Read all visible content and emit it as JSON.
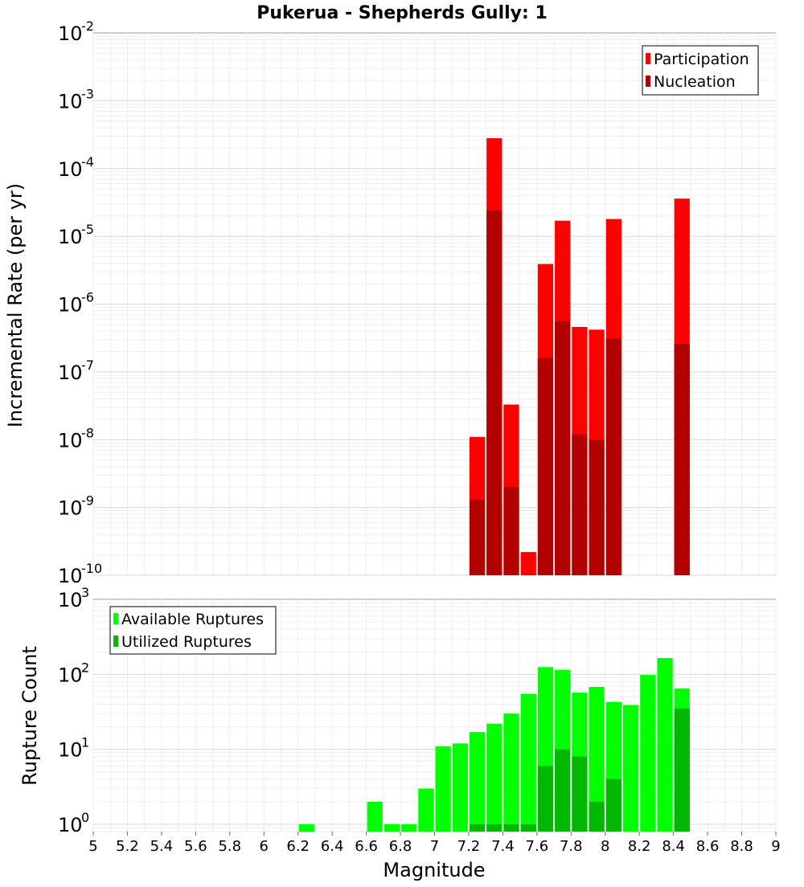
{
  "chart_data": [
    {
      "type": "bar",
      "title": "Pukerua - Shepherds Gully: 1",
      "xlabel": "",
      "ylabel": "Incremental Rate (per yr)",
      "yscale": "log",
      "ylim": [
        1e-10,
        0.01
      ],
      "xlim": [
        5,
        9
      ],
      "ytick_base": "10",
      "ytick_exponents": [
        "-10",
        "-9",
        "-8",
        "-7",
        "-6",
        "-5",
        "-4",
        "-3",
        "-2"
      ],
      "legend_position": "top-right",
      "series": [
        {
          "name": "Participation",
          "color": "#ff0000",
          "x": [
            7.25,
            7.35,
            7.45,
            7.55,
            7.65,
            7.75,
            7.85,
            7.95,
            8.05,
            8.45
          ],
          "values": [
            1.1e-08,
            0.00028,
            3.3e-08,
            2.2e-10,
            3.9e-06,
            1.7e-05,
            4.6e-07,
            4.2e-07,
            1.8e-05,
            3.6e-05
          ]
        },
        {
          "name": "Nucleation",
          "color": "#b30000",
          "x": [
            7.25,
            7.35,
            7.45,
            7.65,
            7.75,
            7.85,
            7.95,
            8.05,
            8.45
          ],
          "values": [
            1.3e-09,
            2.4e-05,
            2e-09,
            1.6e-07,
            5.6e-07,
            1.2e-08,
            1e-08,
            3.1e-07,
            2.6e-07
          ]
        }
      ]
    },
    {
      "type": "bar",
      "title": "",
      "xlabel": "Magnitude",
      "ylabel": "Rupture Count",
      "yscale": "log",
      "ylim": [
        0.8,
        1000
      ],
      "xlim": [
        5,
        9
      ],
      "xticks": [
        "5",
        "5.2",
        "5.4",
        "5.6",
        "5.8",
        "6",
        "6.2",
        "6.4",
        "6.6",
        "6.8",
        "7",
        "7.2",
        "7.4",
        "7.6",
        "7.8",
        "8",
        "8.2",
        "8.4",
        "8.6",
        "8.8",
        "9"
      ],
      "ytick_base": "10",
      "ytick_exponents": [
        "0",
        "1",
        "2",
        "3"
      ],
      "legend_position": "top-left",
      "series": [
        {
          "name": "Available Ruptures",
          "color": "#00ff00",
          "x": [
            6.25,
            6.65,
            6.75,
            6.85,
            6.95,
            7.05,
            7.15,
            7.25,
            7.35,
            7.45,
            7.55,
            7.65,
            7.75,
            7.85,
            7.95,
            8.05,
            8.15,
            8.25,
            8.35,
            8.45
          ],
          "values": [
            1,
            2,
            1,
            1,
            3,
            11,
            12,
            17,
            22,
            30,
            55,
            125,
            115,
            57,
            68,
            43,
            39,
            98,
            165,
            65
          ]
        },
        {
          "name": "Utilized Ruptures",
          "color": "#00b800",
          "x": [
            7.25,
            7.35,
            7.45,
            7.55,
            7.65,
            7.75,
            7.85,
            7.95,
            8.05,
            8.45
          ],
          "values": [
            1,
            1,
            1,
            1,
            6,
            10,
            8,
            2,
            4,
            35
          ]
        }
      ]
    }
  ]
}
